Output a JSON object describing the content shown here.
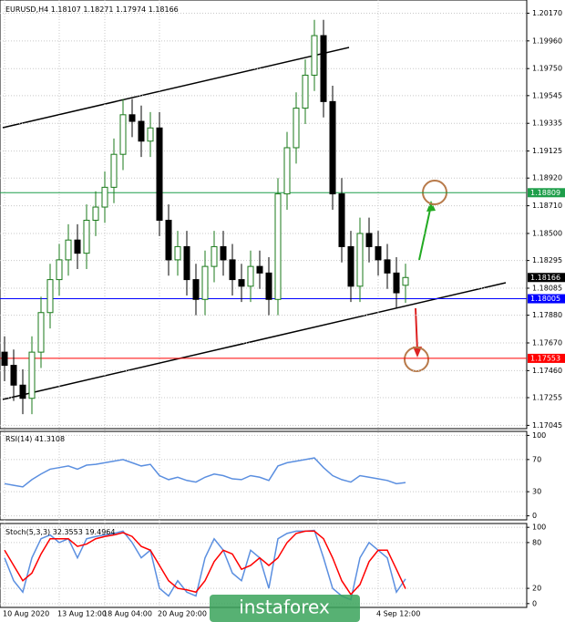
{
  "symbol": "EURUSD,H4",
  "watermark": "instaforex",
  "price": {
    "ylim": [
      1.1702,
      1.2027
    ],
    "yticks": [
      {
        "value": 1.2017,
        "label": "1.20170"
      },
      {
        "value": 1.1996,
        "label": "1.19960"
      },
      {
        "value": 1.1975,
        "label": "1.19750"
      },
      1.19545,
      1.19335,
      1.19125,
      {
        "value": 1.1892,
        "label": "1.18920"
      },
      {
        "value": 1.1871,
        "label": "1.18710"
      },
      {
        "value": 1.185,
        "label": "1.18500"
      },
      1.18295,
      1.18085,
      {
        "value": 1.1788,
        "label": "1.17880"
      },
      {
        "value": 1.1767,
        "label": "1.17670"
      },
      {
        "value": 1.1746,
        "label": "1.17460"
      },
      1.17255,
      1.17045
    ],
    "levels": [
      {
        "value": 1.18809,
        "color": "#1e9e4a"
      },
      {
        "value": 1.18166,
        "color": "#000000"
      },
      {
        "value": 1.18005,
        "color": "#0000ff"
      },
      {
        "value": 1.17553,
        "color": "#ff0000"
      }
    ],
    "up_color": "#1a7a1a",
    "down_color": "#000000",
    "candles": [
      [
        1.176,
        1.1772,
        1.1738,
        1.175
      ],
      [
        1.175,
        1.1762,
        1.1723,
        1.1735
      ],
      [
        1.1735,
        1.1747,
        1.1713,
        1.1725
      ],
      [
        1.1725,
        1.1772,
        1.1713,
        1.176
      ],
      [
        1.176,
        1.1802,
        1.1748,
        1.179
      ],
      [
        1.179,
        1.1827,
        1.1778,
        1.1815
      ],
      [
        1.1815,
        1.1842,
        1.1803,
        1.183
      ],
      [
        1.183,
        1.1857,
        1.1818,
        1.1845
      ],
      [
        1.1845,
        1.1857,
        1.1823,
        1.1835
      ],
      [
        1.1835,
        1.1872,
        1.1823,
        1.186
      ],
      [
        1.186,
        1.1882,
        1.1848,
        1.187
      ],
      [
        1.187,
        1.1897,
        1.1858,
        1.1885
      ],
      [
        1.1885,
        1.1922,
        1.1873,
        1.191
      ],
      [
        1.191,
        1.1952,
        1.1898,
        1.194
      ],
      [
        1.194,
        1.1952,
        1.1923,
        1.1935
      ],
      [
        1.1935,
        1.1947,
        1.1908,
        1.192
      ],
      [
        1.192,
        1.1942,
        1.1908,
        1.193
      ],
      [
        1.193,
        1.1942,
        1.1848,
        1.186
      ],
      [
        1.186,
        1.1872,
        1.1818,
        1.183
      ],
      [
        1.183,
        1.1852,
        1.1818,
        1.184
      ],
      [
        1.184,
        1.1852,
        1.1803,
        1.1815
      ],
      [
        1.1815,
        1.1827,
        1.1788,
        1.18
      ],
      [
        1.18,
        1.1837,
        1.1788,
        1.1825
      ],
      [
        1.1825,
        1.1852,
        1.1813,
        1.184
      ],
      [
        1.184,
        1.1852,
        1.1818,
        1.183
      ],
      [
        1.183,
        1.1842,
        1.1803,
        1.1815
      ],
      [
        1.1815,
        1.1827,
        1.1798,
        1.181
      ],
      [
        1.181,
        1.1837,
        1.1798,
        1.1825
      ],
      [
        1.1825,
        1.1837,
        1.1808,
        1.182
      ],
      [
        1.182,
        1.1832,
        1.1788,
        1.18
      ],
      [
        1.18,
        1.1892,
        1.1788,
        1.188
      ],
      [
        1.188,
        1.1927,
        1.1868,
        1.1915
      ],
      [
        1.1915,
        1.1957,
        1.1903,
        1.1945
      ],
      [
        1.1945,
        1.1982,
        1.1933,
        1.197
      ],
      [
        1.197,
        1.2012,
        1.1958,
        1.2
      ],
      [
        1.2,
        1.2012,
        1.1938,
        1.195
      ],
      [
        1.195,
        1.1962,
        1.1868,
        1.188
      ],
      [
        1.188,
        1.1892,
        1.1828,
        1.184
      ],
      [
        1.184,
        1.1852,
        1.1798,
        1.181
      ],
      [
        1.181,
        1.1862,
        1.1798,
        1.185
      ],
      [
        1.185,
        1.1862,
        1.1828,
        1.184
      ],
      [
        1.184,
        1.1852,
        1.1818,
        1.183
      ],
      [
        1.183,
        1.1842,
        1.1808,
        1.182
      ],
      [
        1.182,
        1.1832,
        1.1793,
        1.1805
      ],
      [
        1.18107,
        1.18271,
        1.17974,
        1.18166
      ]
    ]
  },
  "categories": [
    "10 Aug 2020",
    null,
    null,
    null,
    null,
    null,
    "13 Aug 12:00",
    null,
    null,
    null,
    null,
    "18 Aug 04:00",
    null,
    null,
    null,
    null,
    null,
    "20 Aug 20:00",
    null,
    null,
    null,
    null,
    null,
    null,
    null,
    null,
    null,
    null,
    null,
    null,
    null,
    null,
    null,
    null,
    null,
    null,
    null,
    null,
    null,
    null,
    null,
    "4 Sep 12:00",
    null,
    null,
    null
  ],
  "rsi": {
    "name": "RSI(14)",
    "color": "#5b8fe0",
    "ylim": [
      -5,
      105
    ],
    "yticks": [
      0,
      30,
      70,
      100
    ],
    "values": [
      40,
      38,
      36,
      45,
      52,
      58,
      60,
      62,
      58,
      63,
      64,
      66,
      68,
      70,
      66,
      62,
      64,
      50,
      45,
      48,
      44,
      42,
      48,
      52,
      50,
      46,
      45,
      50,
      48,
      44,
      62,
      66,
      68,
      70,
      72,
      60,
      50,
      45,
      42,
      50,
      48,
      46,
      44,
      40,
      41.3108
    ]
  },
  "stoch": {
    "name": "Stoch(5,3,3)",
    "ylim": [
      -5,
      105
    ],
    "yticks": [
      0,
      20,
      80,
      100
    ],
    "series": [
      {
        "color": "#5b8fe0",
        "values": [
          60,
          30,
          15,
          60,
          85,
          90,
          80,
          85,
          60,
          85,
          88,
          90,
          92,
          95,
          80,
          60,
          70,
          20,
          10,
          30,
          15,
          10,
          60,
          85,
          70,
          40,
          30,
          70,
          60,
          20,
          85,
          92,
          95,
          95,
          96,
          60,
          20,
          10,
          5,
          60,
          80,
          70,
          60,
          15,
          32.3553
        ]
      },
      {
        "color": "#ff0000",
        "values": [
          70,
          50,
          30,
          40,
          65,
          85,
          85,
          85,
          75,
          78,
          85,
          88,
          90,
          93,
          88,
          75,
          70,
          50,
          30,
          20,
          18,
          15,
          30,
          55,
          70,
          65,
          45,
          50,
          60,
          50,
          60,
          80,
          92,
          95,
          95,
          85,
          60,
          30,
          12,
          25,
          55,
          70,
          70,
          45,
          19.4964
        ]
      }
    ]
  }
}
